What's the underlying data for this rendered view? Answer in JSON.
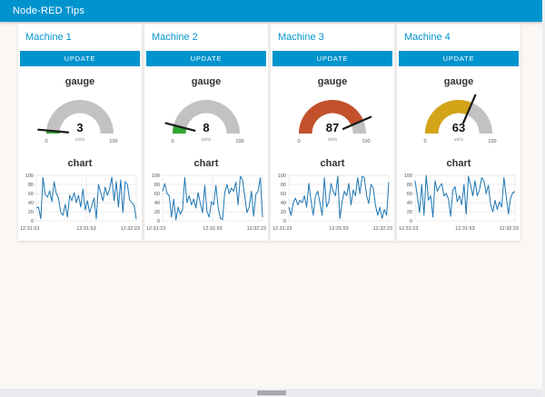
{
  "header": {
    "title": "Node-RED Tips",
    "bar_color": "#0094CE"
  },
  "gauge_defaults": {
    "title": "gauge",
    "min_label": "0",
    "max_label": "100",
    "units_label": "units",
    "min": 0,
    "max": 100,
    "track_color": "#c2c2c2",
    "needle_color": "#1a1a1a"
  },
  "chart_defaults": {
    "title": "chart",
    "line_color": "#1f77b4",
    "grid_color": "#e4e4e4",
    "y_ticks": [
      0,
      20,
      40,
      60,
      80,
      100
    ],
    "y_range": [
      0,
      100
    ],
    "x_ticks": [
      "12:31:23",
      "12:31:53",
      "12:32:23"
    ]
  },
  "machines": [
    {
      "name": "Machine 1",
      "button_label": "UPDATE",
      "gauge": {
        "value": 3,
        "fill_color": "#32a532"
      },
      "chart": {
        "type": "line",
        "values": [
          28,
          30,
          4,
          95,
          58,
          52,
          66,
          42,
          86,
          60,
          50,
          18,
          12,
          36,
          8,
          56,
          44,
          62,
          40,
          56,
          30,
          70,
          24,
          44,
          18,
          34,
          50,
          4,
          80,
          62,
          44,
          74,
          56,
          70,
          96,
          44,
          86,
          30,
          90,
          18,
          86,
          80,
          46,
          40,
          34,
          4
        ]
      }
    },
    {
      "name": "Machine 2",
      "button_label": "UPDATE",
      "gauge": {
        "value": 8,
        "fill_color": "#32a532"
      },
      "chart": {
        "type": "line",
        "values": [
          65,
          82,
          60,
          55,
          8,
          48,
          2,
          30,
          14,
          25,
          95,
          40,
          55,
          35,
          48,
          28,
          62,
          38,
          18,
          78,
          20,
          8,
          42,
          35,
          78,
          30,
          5,
          3,
          62,
          80,
          60,
          72,
          65,
          85,
          35,
          98,
          90,
          55,
          18,
          30,
          65,
          10,
          58,
          65,
          95,
          8
        ]
      }
    },
    {
      "name": "Machine 3",
      "button_label": "UPDATE",
      "gauge": {
        "value": 87,
        "fill_color": "#c3512c"
      },
      "chart": {
        "type": "line",
        "values": [
          30,
          12,
          40,
          50,
          35,
          45,
          40,
          55,
          30,
          82,
          45,
          12,
          55,
          65,
          40,
          12,
          95,
          30,
          42,
          82,
          65,
          55,
          98,
          5,
          42,
          65,
          55,
          82,
          35,
          68,
          55,
          95,
          60,
          98,
          95,
          55,
          38,
          80,
          72,
          35,
          12,
          30,
          5,
          25,
          12,
          85
        ]
      }
    },
    {
      "name": "Machine 4",
      "button_label": "UPDATE",
      "gauge": {
        "value": 63,
        "fill_color": "#d3a418"
      },
      "chart": {
        "type": "line",
        "values": [
          88,
          55,
          18,
          80,
          12,
          100,
          45,
          55,
          8,
          88,
          65,
          75,
          82,
          55,
          60,
          48,
          10,
          68,
          75,
          42,
          55,
          35,
          80,
          15,
          98,
          78,
          55,
          88,
          55,
          68,
          95,
          88,
          60,
          78,
          35,
          20,
          45,
          25,
          42,
          30,
          95,
          55,
          15,
          50,
          62,
          64
        ]
      }
    }
  ]
}
